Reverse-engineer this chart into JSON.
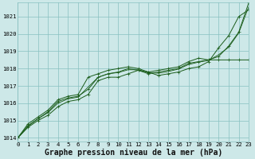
{
  "title": "Graphe pression niveau de la mer (hPa)",
  "background_color": "#cde8e8",
  "grid_color": "#88c0c0",
  "line_color": "#1a5c1a",
  "xlim": [
    0,
    23
  ],
  "ylim": [
    1013.8,
    1021.8
  ],
  "yticks": [
    1014,
    1015,
    1016,
    1017,
    1018,
    1019,
    1020,
    1021
  ],
  "xticks": [
    0,
    1,
    2,
    3,
    4,
    5,
    6,
    7,
    8,
    9,
    10,
    11,
    12,
    13,
    14,
    15,
    16,
    17,
    18,
    19,
    20,
    21,
    22,
    23
  ],
  "s1_y": [
    1014.0,
    1014.6,
    1015.0,
    1015.3,
    1015.8,
    1016.1,
    1016.2,
    1016.5,
    1017.3,
    1017.5,
    1017.5,
    1017.7,
    1017.9,
    1017.8,
    1017.6,
    1017.7,
    1017.8,
    1018.0,
    1018.1,
    1018.4,
    1019.2,
    1019.9,
    1021.0,
    1021.4
  ],
  "s2_y": [
    1014.0,
    1014.7,
    1015.1,
    1015.5,
    1016.1,
    1016.3,
    1016.4,
    1016.8,
    1017.5,
    1017.7,
    1017.8,
    1018.0,
    1017.9,
    1017.7,
    1017.8,
    1017.9,
    1018.0,
    1018.3,
    1018.4,
    1018.5,
    1018.5,
    1018.5,
    1018.5,
    1018.5
  ],
  "s3_y": [
    1014.0,
    1014.8,
    1015.2,
    1015.6,
    1016.2,
    1016.4,
    1016.5,
    1017.5,
    1017.7,
    1017.9,
    1018.0,
    1018.1,
    1018.0,
    1017.8,
    1017.9,
    1018.0,
    1018.1,
    1018.4,
    1018.6,
    1018.5,
    1018.7,
    1019.3,
    1020.1,
    1021.8
  ],
  "s4_y": [
    1014.0,
    1014.65,
    1015.1,
    1015.45,
    1016.0,
    1016.25,
    1016.35,
    1016.93,
    1017.5,
    1017.7,
    1017.77,
    1017.93,
    1017.93,
    1017.77,
    1017.73,
    1017.83,
    1017.97,
    1018.23,
    1018.37,
    1018.47,
    1018.8,
    1019.23,
    1020.05,
    1021.57
  ],
  "font_family": "monospace",
  "title_fontsize": 7.0,
  "tick_fontsize": 5.2
}
